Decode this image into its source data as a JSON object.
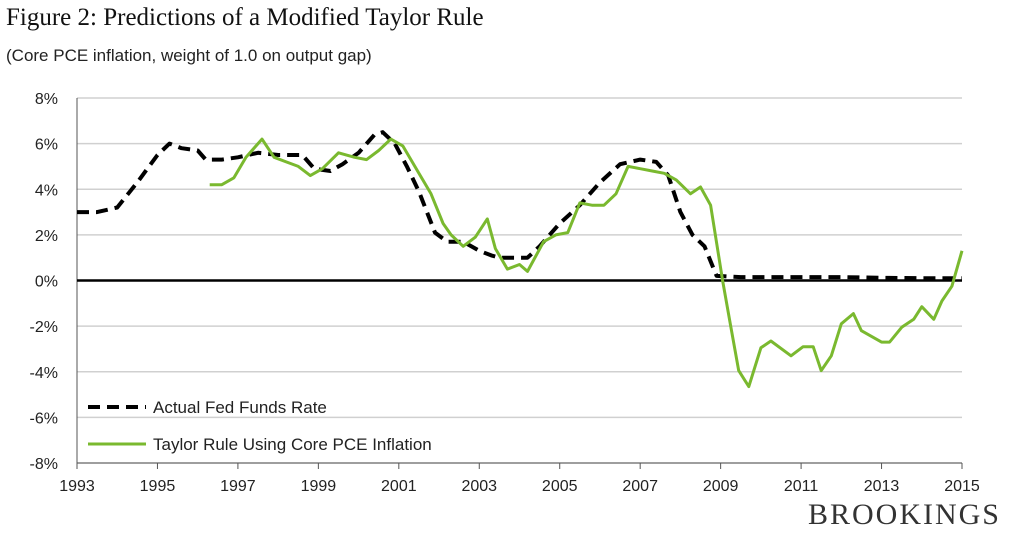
{
  "chart_data": {
    "type": "line",
    "title": "Figure 2: Predictions of a Modified Taylor Rule",
    "subtitle": "(Core PCE inflation, weight of 1.0 on output gap)",
    "xlabel": "",
    "ylabel": "",
    "xlim": [
      1993,
      2015
    ],
    "ylim": [
      -8,
      8
    ],
    "x_ticks": [
      "1993",
      "1995",
      "1997",
      "1999",
      "2001",
      "2003",
      "2005",
      "2007",
      "2009",
      "2011",
      "2013",
      "2015"
    ],
    "y_ticks": [
      "8%",
      "6%",
      "4%",
      "2%",
      "0%",
      "-2%",
      "-4%",
      "-6%",
      "-8%"
    ],
    "grid": true,
    "legend_placement": "bottom-left",
    "series": [
      {
        "name": "Actual Fed Funds Rate",
        "color": "#000000",
        "style": "dashed",
        "points": [
          [
            1993,
            3.0
          ],
          [
            1993.5,
            3.0
          ],
          [
            1994,
            3.2
          ],
          [
            1994.5,
            4.3
          ],
          [
            1995,
            5.5
          ],
          [
            1995.3,
            6.0
          ],
          [
            1995.6,
            5.8
          ],
          [
            1996,
            5.7
          ],
          [
            1996.2,
            5.3
          ],
          [
            1996.6,
            5.3
          ],
          [
            1997,
            5.4
          ],
          [
            1997.5,
            5.6
          ],
          [
            1998,
            5.5
          ],
          [
            1998.6,
            5.5
          ],
          [
            1998.9,
            4.9
          ],
          [
            1999.3,
            4.8
          ],
          [
            1999.6,
            5.1
          ],
          [
            2000,
            5.6
          ],
          [
            2000.4,
            6.4
          ],
          [
            2000.6,
            6.5
          ],
          [
            2000.9,
            6.0
          ],
          [
            2001.2,
            5.0
          ],
          [
            2001.5,
            3.9
          ],
          [
            2001.9,
            2.1
          ],
          [
            2002.2,
            1.7
          ],
          [
            2002.6,
            1.7
          ],
          [
            2003,
            1.3
          ],
          [
            2003.3,
            1.1
          ],
          [
            2003.5,
            1.0
          ],
          [
            2004.2,
            1.0
          ],
          [
            2004.5,
            1.5
          ],
          [
            2005,
            2.5
          ],
          [
            2005.5,
            3.3
          ],
          [
            2006,
            4.3
          ],
          [
            2006.5,
            5.1
          ],
          [
            2007,
            5.3
          ],
          [
            2007.4,
            5.2
          ],
          [
            2007.7,
            4.6
          ],
          [
            2008,
            3.0
          ],
          [
            2008.3,
            2.0
          ],
          [
            2008.6,
            1.5
          ],
          [
            2008.9,
            0.2
          ],
          [
            2009.5,
            0.15
          ],
          [
            2010,
            0.15
          ],
          [
            2011,
            0.15
          ],
          [
            2012,
            0.15
          ],
          [
            2013,
            0.12
          ],
          [
            2014,
            0.1
          ],
          [
            2015,
            0.1
          ]
        ]
      },
      {
        "name": "Taylor Rule Using Core PCE Inflation",
        "color": "#7ab92f",
        "style": "solid",
        "points": [
          [
            1996.3,
            4.2
          ],
          [
            1996.6,
            4.2
          ],
          [
            1996.9,
            4.5
          ],
          [
            1997.2,
            5.4
          ],
          [
            1997.6,
            6.2
          ],
          [
            1997.9,
            5.4
          ],
          [
            1998.2,
            5.2
          ],
          [
            1998.5,
            5.0
          ],
          [
            1998.8,
            4.6
          ],
          [
            1999.1,
            4.9
          ],
          [
            1999.5,
            5.6
          ],
          [
            1999.9,
            5.4
          ],
          [
            2000.2,
            5.3
          ],
          [
            2000.5,
            5.7
          ],
          [
            2000.8,
            6.2
          ],
          [
            2001.1,
            5.9
          ],
          [
            2001.5,
            4.7
          ],
          [
            2001.8,
            3.8
          ],
          [
            2002.1,
            2.5
          ],
          [
            2002.3,
            2.0
          ],
          [
            2002.6,
            1.5
          ],
          [
            2002.9,
            1.9
          ],
          [
            2003.2,
            2.7
          ],
          [
            2003.4,
            1.4
          ],
          [
            2003.7,
            0.5
          ],
          [
            2004,
            0.7
          ],
          [
            2004.2,
            0.4
          ],
          [
            2004.6,
            1.7
          ],
          [
            2004.9,
            2.0
          ],
          [
            2005.2,
            2.1
          ],
          [
            2005.5,
            3.4
          ],
          [
            2005.8,
            3.3
          ],
          [
            2006.1,
            3.3
          ],
          [
            2006.4,
            3.8
          ],
          [
            2006.7,
            5.0
          ],
          [
            2007,
            4.9
          ],
          [
            2007.3,
            4.8
          ],
          [
            2007.6,
            4.7
          ],
          [
            2007.9,
            4.4
          ],
          [
            2008.25,
            3.8
          ],
          [
            2008.5,
            4.1
          ],
          [
            2008.75,
            3.3
          ],
          [
            2009.05,
            0.0
          ],
          [
            2009.25,
            -2.0
          ],
          [
            2009.45,
            -3.95
          ],
          [
            2009.7,
            -4.65
          ],
          [
            2010,
            -2.95
          ],
          [
            2010.25,
            -2.65
          ],
          [
            2010.75,
            -3.3
          ],
          [
            2011.05,
            -2.9
          ],
          [
            2011.3,
            -2.9
          ],
          [
            2011.5,
            -3.95
          ],
          [
            2011.75,
            -3.3
          ],
          [
            2012,
            -1.9
          ],
          [
            2012.3,
            -1.45
          ],
          [
            2012.5,
            -2.2
          ],
          [
            2013,
            -2.7
          ],
          [
            2013.2,
            -2.7
          ],
          [
            2013.5,
            -2.05
          ],
          [
            2013.8,
            -1.7
          ],
          [
            2014,
            -1.15
          ],
          [
            2014.3,
            -1.7
          ],
          [
            2014.5,
            -0.9
          ],
          [
            2014.75,
            -0.25
          ],
          [
            2015,
            1.3
          ]
        ]
      }
    ]
  },
  "branding": {
    "logo": "BROOKINGS"
  }
}
